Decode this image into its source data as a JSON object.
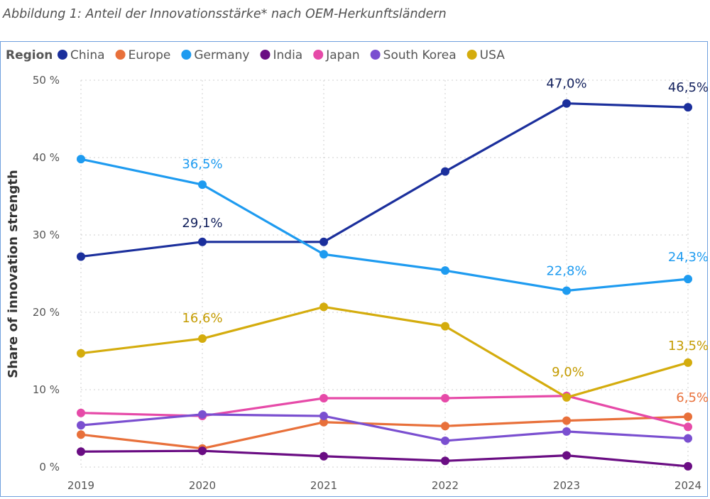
{
  "caption": "Abbildung 1: Anteil der Innovationsstärke* nach OEM-Herkunftsländern",
  "chart_data": {
    "type": "line",
    "title": "",
    "xlabel": "",
    "ylabel": "Share of innovation strength",
    "legend_title": "Region",
    "legend_position": "top-left",
    "grid": true,
    "categories": [
      "2019",
      "2020",
      "2021",
      "2022",
      "2023",
      "2024"
    ],
    "ylim": [
      0,
      50
    ],
    "yticks": [
      0,
      10,
      20,
      30,
      40,
      50
    ],
    "ytick_labels": [
      "0 %",
      "10 %",
      "20 %",
      "30 %",
      "40 %",
      "50 %"
    ],
    "series": [
      {
        "name": "China",
        "color": "#1b2f9c",
        "label_color": "#12205c",
        "values": [
          27.2,
          29.1,
          29.1,
          38.2,
          47.0,
          46.5
        ],
        "labels": [
          {
            "index": 1,
            "text": "29,1%"
          },
          {
            "index": 4,
            "text": "47,0%"
          },
          {
            "index": 5,
            "text": "46,5%"
          }
        ]
      },
      {
        "name": "Europe",
        "color": "#e8703a",
        "label_color": "#e8703a",
        "values": [
          4.2,
          2.4,
          5.8,
          5.3,
          6.0,
          6.5
        ],
        "labels": [
          {
            "index": 5,
            "text": "6,5%"
          }
        ]
      },
      {
        "name": "Germany",
        "color": "#1e9bf0",
        "label_color": "#1e9bf0",
        "values": [
          39.8,
          36.5,
          27.5,
          25.4,
          22.8,
          24.3
        ],
        "labels": [
          {
            "index": 1,
            "text": "36,5%"
          },
          {
            "index": 4,
            "text": "22,8%"
          },
          {
            "index": 5,
            "text": "24,3%"
          }
        ]
      },
      {
        "name": "India",
        "color": "#6a0d83",
        "label_color": "#6a0d83",
        "values": [
          2.0,
          2.1,
          1.4,
          0.8,
          1.5,
          0.1
        ],
        "labels": []
      },
      {
        "name": "Japan",
        "color": "#e64aa8",
        "label_color": "#e64aa8",
        "values": [
          7.0,
          6.6,
          8.9,
          8.9,
          9.2,
          5.2
        ],
        "labels": []
      },
      {
        "name": "South Korea",
        "color": "#7a4fd0",
        "label_color": "#7a4fd0",
        "values": [
          5.4,
          6.8,
          6.6,
          3.4,
          4.6,
          3.7
        ],
        "labels": []
      },
      {
        "name": "USA",
        "color": "#d4ac0d",
        "label_color": "#c49b00",
        "values": [
          14.7,
          16.6,
          20.7,
          18.2,
          9.0,
          13.5
        ],
        "labels": [
          {
            "index": 1,
            "text": "16,6%"
          },
          {
            "index": 4,
            "text": "9,0%"
          },
          {
            "index": 5,
            "text": "13,5%"
          }
        ]
      }
    ]
  }
}
